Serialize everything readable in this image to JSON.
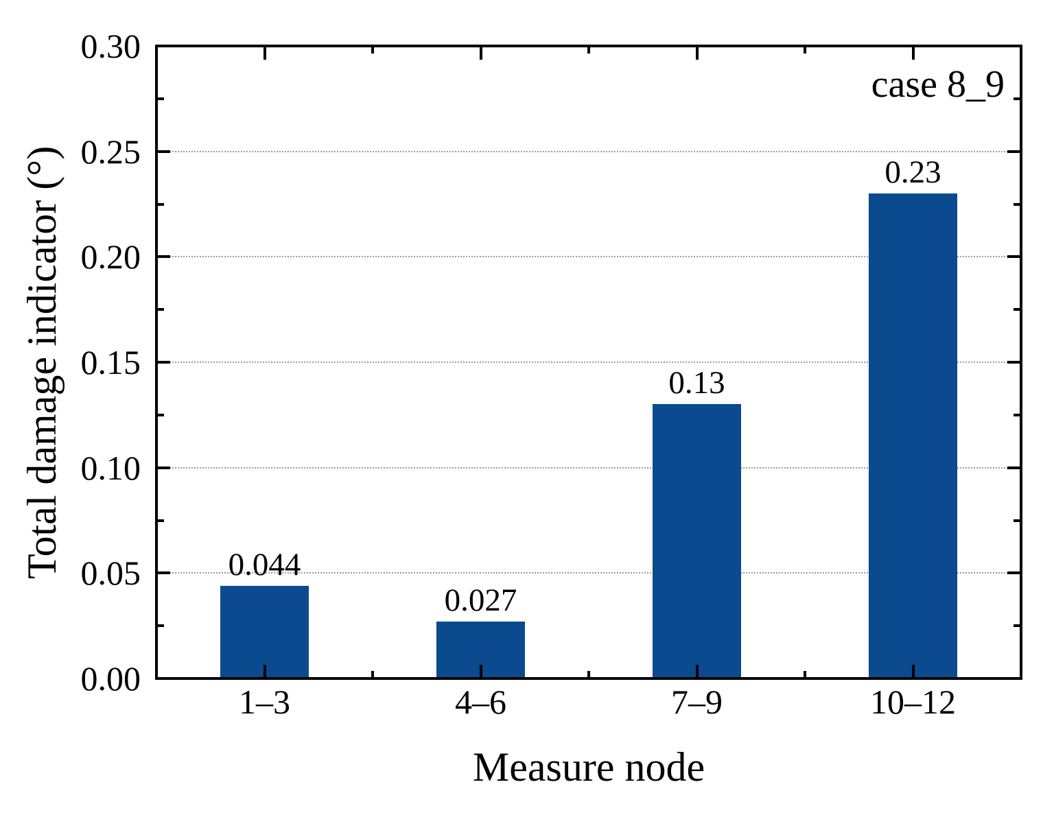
{
  "chart_data": {
    "type": "bar",
    "title": "",
    "annotation": "case 8_9",
    "xlabel": "Measure node",
    "ylabel": "Total damage indicator (°)",
    "categories": [
      "1–3",
      "4–6",
      "7–9",
      "10–12"
    ],
    "values": [
      0.044,
      0.027,
      0.13,
      0.23
    ],
    "bar_value_labels": [
      "0.044",
      "0.027",
      "0.13",
      "0.23"
    ],
    "ylim": [
      0,
      0.3
    ],
    "y_major_tick_step": 0.05,
    "y_minor_tick_step": 0.025,
    "y_tick_labels": [
      "0.00",
      "0.05",
      "0.10",
      "0.15",
      "0.20",
      "0.25",
      "0.30"
    ],
    "grid": {
      "horizontal": true,
      "style": "dotted",
      "at_values": [
        0.05,
        0.1,
        0.15,
        0.2,
        0.25
      ],
      "color": "#9a9a9a"
    },
    "legend": "none",
    "colors": {
      "bar": "#0b4a8e",
      "axis": "#000000",
      "text": "#000000",
      "background": "#ffffff"
    }
  }
}
